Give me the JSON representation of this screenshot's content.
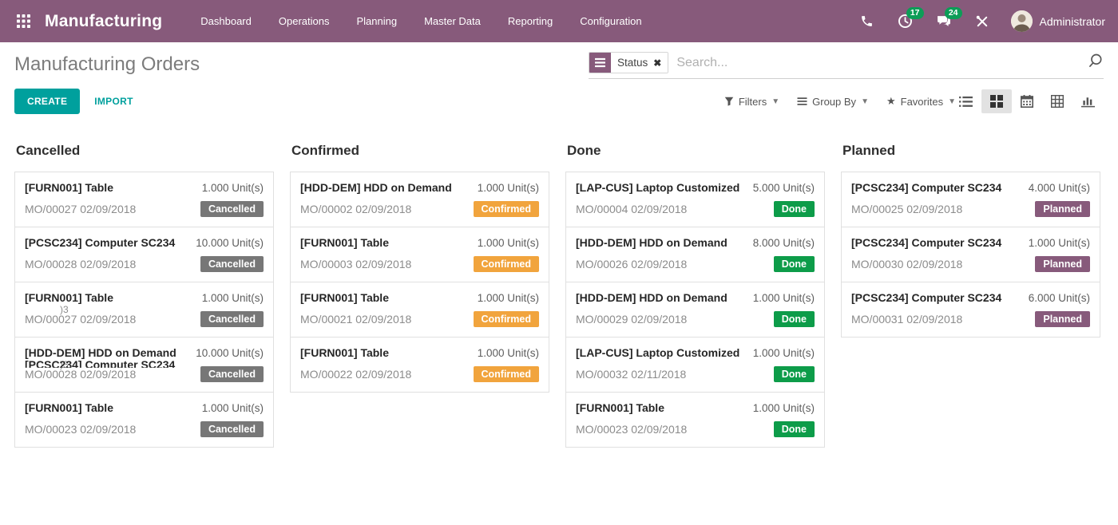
{
  "navbar": {
    "brand": "Manufacturing",
    "menu_items": [
      "Dashboard",
      "Operations",
      "Planning",
      "Master Data",
      "Reporting",
      "Configuration"
    ],
    "activity_count": "17",
    "message_count": "24",
    "user_name": "Administrator"
  },
  "control_panel": {
    "title": "Manufacturing Orders",
    "create_label": "CREATE",
    "import_label": "IMPORT",
    "search": {
      "facet_label": "Status",
      "facet_close": "✖",
      "placeholder": "Search..."
    },
    "filters_label": "Filters",
    "group_by_label": "Group By",
    "favorites_label": "Favorites",
    "view_switcher": [
      "list-view",
      "kanban-view",
      "calendar-view",
      "pivot-view",
      "graph-view"
    ],
    "active_view": "kanban-view"
  },
  "colors": {
    "brand": "#875A7B",
    "accent_teal": "#00A09D",
    "notification_badge": "#0C9D57",
    "badge_cancelled": "#777777",
    "badge_confirmed": "#F1A43D",
    "badge_done": "#0D9C49",
    "badge_planned": "#875A7B"
  },
  "board": {
    "columns": [
      {
        "title": "Cancelled",
        "cards": [
          {
            "title": "[FURN001] Table",
            "qty": "1.000 Unit(s)",
            "ref": "MO/00027 02/09/2018",
            "status": "Cancelled"
          },
          {
            "title": "[PCSC234] Computer SC234",
            "qty": "10.000 Unit(s)",
            "ref": "MO/00028 02/09/2018",
            "status": "Cancelled"
          },
          {
            "title": "[FURN001] Table",
            "qty": "1.000 Unit(s)",
            "ref": "MO/00027 02/09/2018",
            "status": "Cancelled",
            "glitch_text": ")3"
          },
          {
            "title": "[HDD-DEM] HDD on Demand",
            "qty": "10.000 Unit(s)",
            "ref": "MO/00028 02/09/2018",
            "status": "Cancelled",
            "glitch_text": ")3",
            "ghost_title": "[PCSC234] Computer SC234"
          },
          {
            "title": "[FURN001] Table",
            "qty": "1.000 Unit(s)",
            "ref": "MO/00023 02/09/2018",
            "status": "Cancelled"
          }
        ]
      },
      {
        "title": "Confirmed",
        "cards": [
          {
            "title": "[HDD-DEM] HDD on Demand",
            "qty": "1.000 Unit(s)",
            "ref": "MO/00002 02/09/2018",
            "status": "Confirmed"
          },
          {
            "title": "[FURN001] Table",
            "qty": "1.000 Unit(s)",
            "ref": "MO/00003 02/09/2018",
            "status": "Confirmed"
          },
          {
            "title": "[FURN001] Table",
            "qty": "1.000 Unit(s)",
            "ref": "MO/00021 02/09/2018",
            "status": "Confirmed"
          },
          {
            "title": "[FURN001] Table",
            "qty": "1.000 Unit(s)",
            "ref": "MO/00022 02/09/2018",
            "status": "Confirmed"
          }
        ]
      },
      {
        "title": "Done",
        "cards": [
          {
            "title": "[LAP-CUS] Laptop Customized",
            "qty": "5.000 Unit(s)",
            "ref": "MO/00004 02/09/2018",
            "status": "Done"
          },
          {
            "title": "[HDD-DEM] HDD on Demand",
            "qty": "8.000 Unit(s)",
            "ref": "MO/00026 02/09/2018",
            "status": "Done"
          },
          {
            "title": "[HDD-DEM] HDD on Demand",
            "qty": "1.000 Unit(s)",
            "ref": "MO/00029 02/09/2018",
            "status": "Done"
          },
          {
            "title": "[LAP-CUS] Laptop Customized",
            "qty": "1.000 Unit(s)",
            "ref": "MO/00032 02/11/2018",
            "status": "Done"
          },
          {
            "title": "[FURN001] Table",
            "qty": "1.000 Unit(s)",
            "ref": "MO/00023 02/09/2018",
            "status": "Done"
          }
        ]
      },
      {
        "title": "Planned",
        "cards": [
          {
            "title": "[PCSC234] Computer SC234",
            "qty": "4.000 Unit(s)",
            "ref": "MO/00025 02/09/2018",
            "status": "Planned"
          },
          {
            "title": "[PCSC234] Computer SC234",
            "qty": "1.000 Unit(s)",
            "ref": "MO/00030 02/09/2018",
            "status": "Planned"
          },
          {
            "title": "[PCSC234] Computer SC234",
            "qty": "6.000 Unit(s)",
            "ref": "MO/00031 02/09/2018",
            "status": "Planned"
          }
        ]
      }
    ]
  }
}
